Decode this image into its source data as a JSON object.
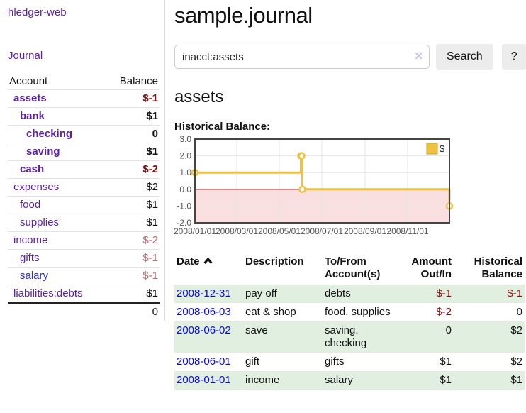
{
  "sidebar": {
    "brand": "hledger-web",
    "nav": [
      {
        "label": "Journal"
      }
    ],
    "accounts_table": {
      "headers": [
        "Account",
        "Balance"
      ],
      "rows": [
        {
          "account": "assets",
          "indent": 1,
          "bold": true,
          "balance": "$-1",
          "balance_class": "neg-strong",
          "link_color": "purple"
        },
        {
          "account": "bank",
          "indent": 2,
          "bold": true,
          "balance": "$1",
          "balance_class": "",
          "link_color": "purple"
        },
        {
          "account": "checking",
          "indent": 3,
          "bold": true,
          "balance": "0",
          "balance_class": "",
          "link_color": "purple"
        },
        {
          "account": "saving",
          "indent": 3,
          "bold": true,
          "balance": "$1",
          "balance_class": "",
          "link_color": "purple"
        },
        {
          "account": "cash",
          "indent": 2,
          "bold": true,
          "balance": "$-2",
          "balance_class": "neg-strong",
          "link_color": "purple"
        },
        {
          "account": "expenses",
          "indent": 1,
          "bold": false,
          "balance": "$2",
          "balance_class": "",
          "link_color": "purple"
        },
        {
          "account": "food",
          "indent": 2,
          "bold": false,
          "balance": "$1",
          "balance_class": "",
          "link_color": "purple"
        },
        {
          "account": "supplies",
          "indent": 2,
          "bold": false,
          "balance": "$1",
          "balance_class": "",
          "link_color": "purple"
        },
        {
          "account": "income",
          "indent": 1,
          "bold": false,
          "balance": "$-2",
          "balance_class": "neg-soft",
          "link_color": "purple"
        },
        {
          "account": "gifts",
          "indent": 2,
          "bold": false,
          "balance": "$-1",
          "balance_class": "neg-soft",
          "link_color": "purple"
        },
        {
          "account": "salary",
          "indent": 2,
          "bold": false,
          "balance": "$-1",
          "balance_class": "neg-soft",
          "link_color": "blue"
        },
        {
          "account": "liabilities:debts",
          "indent": 1,
          "bold": false,
          "balance": "$1",
          "balance_class": "",
          "link_color": "purple"
        }
      ],
      "total": "0"
    }
  },
  "main": {
    "title": "sample.journal",
    "section_heading": "assets"
  },
  "search": {
    "value": "inacct:assets",
    "clear_icon": "✕",
    "button_label": "Search",
    "help_label": "?"
  },
  "chart_data": {
    "type": "line",
    "title": "Historical Balance:",
    "legend": "$",
    "legend_position": "top-right",
    "grid": true,
    "x_range": [
      "2008-01-01",
      "2008-12-31"
    ],
    "y_range": [
      -2,
      3
    ],
    "x_ticks": [
      "2008/01/01",
      "2008/03/01",
      "2008/05/01",
      "2008/07/01",
      "2008/09/01",
      "2008/11/01"
    ],
    "y_ticks": [
      "3.0",
      "2.0",
      "1.0",
      "0.0",
      "-1.0",
      "-2.0"
    ],
    "series": [
      {
        "name": "$",
        "color": "#EDC240",
        "steps": true,
        "points": [
          {
            "date": "2008-01-01",
            "value": 1
          },
          {
            "date": "2008-06-01",
            "value": 2
          },
          {
            "date": "2008-06-02",
            "value": 2
          },
          {
            "date": "2008-06-03",
            "value": 0
          },
          {
            "date": "2008-12-31",
            "value": -1
          }
        ]
      }
    ],
    "zero_line_color": "#8b0000",
    "negative_region_color": "#f9dfdf",
    "gridline_color": "#e4e4e4",
    "plot_border_color": "#444444"
  },
  "register": {
    "headers": [
      {
        "label": "Date",
        "sort_icon": "chevron-up"
      },
      {
        "label": "Description"
      },
      {
        "label": "To/From Account(s)"
      },
      {
        "label": "Amount Out/In",
        "align": "right"
      },
      {
        "label": "Historical Balance",
        "align": "right"
      }
    ],
    "rows": [
      {
        "date": "2008-12-31",
        "description": "pay off",
        "accounts": "debts",
        "amount": "$-1",
        "amount_neg": true,
        "balance": "$-1",
        "balance_neg": true
      },
      {
        "date": "2008-06-03",
        "description": "eat & shop",
        "accounts": "food, supplies",
        "amount": "$-2",
        "amount_neg": true,
        "balance": "0",
        "balance_neg": false
      },
      {
        "date": "2008-06-02",
        "description": "save",
        "accounts": "saving, checking",
        "amount": "0",
        "amount_neg": false,
        "balance": "$2",
        "balance_neg": false
      },
      {
        "date": "2008-06-01",
        "description": "gift",
        "accounts": "gifts",
        "amount": "$1",
        "amount_neg": false,
        "balance": "$2",
        "balance_neg": false
      },
      {
        "date": "2008-01-01",
        "description": "income",
        "accounts": "salary",
        "amount": "$1",
        "amount_neg": false,
        "balance": "$1",
        "balance_neg": false
      }
    ]
  }
}
